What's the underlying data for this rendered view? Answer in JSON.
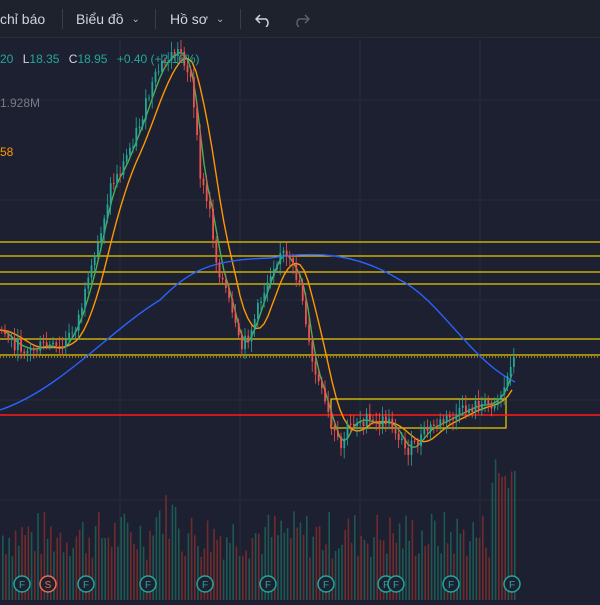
{
  "toolbar": {
    "indicators_label": "chỉ báo",
    "chart_label": "Biểu đồ",
    "profile_label": "Hồ sơ"
  },
  "legend": {
    "h_value": "20",
    "l_label": "L",
    "l_value": "18.35",
    "c_label": "C",
    "c_value": "18.95",
    "change": "+0.40 (+2.16%)"
  },
  "volume_value": "1.928M",
  "indicator_value": "58",
  "colors": {
    "up": "#26a69a",
    "down": "#ef5350",
    "ma_fast": "#4caf50",
    "ma_mid": "#ff9800",
    "ma_slow": "#2962ff",
    "zone_line": "#f0d000",
    "support_line": "#ff1a1a"
  },
  "event_markers": [
    "F",
    "S",
    "F",
    "F",
    "F",
    "F",
    "F",
    "F",
    "F",
    "F",
    "F"
  ],
  "icons": [
    "undo-icon",
    "redo-icon",
    "chevron-down-icon"
  ]
}
